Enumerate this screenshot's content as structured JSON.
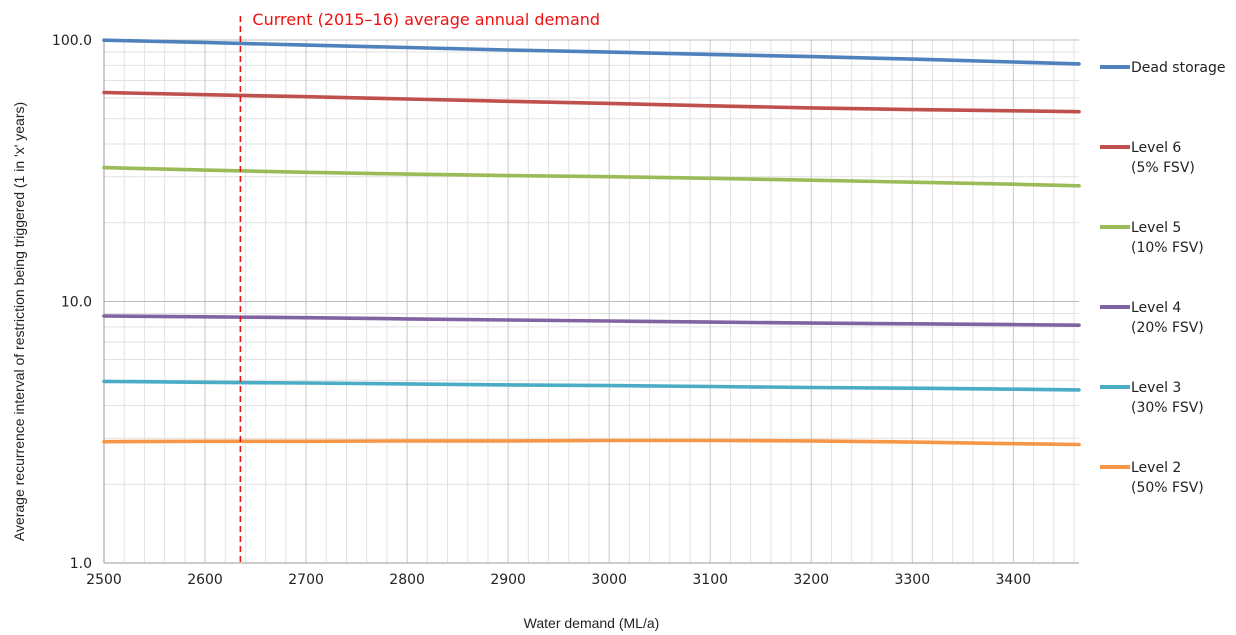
{
  "chart_data": {
    "type": "line",
    "title": "",
    "xlabel": "Water demand (ML/a)",
    "ylabel": "Average recurrence interval of restriction being triggered  (1 in  'x'  years)",
    "xlim": [
      2500,
      3465
    ],
    "ylim": [
      1,
      100
    ],
    "y_scale": "log",
    "grid": true,
    "legend_position": "right",
    "x_ticks": [
      2500,
      2600,
      2700,
      2800,
      2900,
      3000,
      3100,
      3200,
      3300,
      3400
    ],
    "x_tick_labels": [
      "2500",
      "2600",
      "2700",
      "2800",
      "2900",
      "3000",
      "3100",
      "3200",
      "3300",
      "3400"
    ],
    "y_ticks": [
      1,
      10,
      100
    ],
    "y_tick_labels": [
      "1.0",
      "10.0",
      "100.0"
    ],
    "x": [
      2500,
      2600,
      2700,
      2800,
      2900,
      3000,
      3100,
      3200,
      3300,
      3400,
      3465
    ],
    "series": [
      {
        "name": "Dead storage",
        "legend_lines": [
          "Dead storage"
        ],
        "color": "#4f81bd",
        "values": [
          99.8,
          97.8,
          95.6,
          93.6,
          91.6,
          89.9,
          88.1,
          86.4,
          84.5,
          82.4,
          81.0
        ]
      },
      {
        "name": "Level 6 (5% FSV)",
        "legend_lines": [
          "Level 6",
          "(5% FSV)"
        ],
        "color": "#c0504d",
        "values": [
          63.0,
          61.8,
          60.7,
          59.5,
          58.3,
          57.2,
          56.0,
          55.0,
          54.2,
          53.6,
          53.2
        ]
      },
      {
        "name": "Level 5 (10% FSV)",
        "legend_lines": [
          "Level 5",
          "(10% FSV)"
        ],
        "color": "#9bbb59",
        "values": [
          32.5,
          31.8,
          31.2,
          30.7,
          30.3,
          30.0,
          29.6,
          29.1,
          28.6,
          28.1,
          27.7
        ]
      },
      {
        "name": "Level 4 (20% FSV)",
        "legend_lines": [
          "Level 4",
          "(20% FSV)"
        ],
        "color": "#8064a2",
        "values": [
          8.8,
          8.74,
          8.67,
          8.58,
          8.5,
          8.42,
          8.34,
          8.27,
          8.22,
          8.16,
          8.12
        ]
      },
      {
        "name": "Level 3 (30% FSV)",
        "legend_lines": [
          "Level 3",
          "(30% FSV)"
        ],
        "color": "#4bacc6",
        "values": [
          4.95,
          4.91,
          4.88,
          4.84,
          4.8,
          4.77,
          4.73,
          4.69,
          4.66,
          4.62,
          4.59
        ]
      },
      {
        "name": "Level 2 (50% FSV)",
        "legend_lines": [
          "Level 2",
          "(50% FSV)"
        ],
        "color": "#f79646",
        "values": [
          2.91,
          2.92,
          2.92,
          2.93,
          2.93,
          2.94,
          2.94,
          2.93,
          2.9,
          2.86,
          2.84
        ]
      }
    ],
    "annotations": [
      {
        "type": "vertical-line",
        "x": 2635,
        "color": "#ee1111",
        "label": "Current (2015–16) average annual demand"
      }
    ]
  }
}
